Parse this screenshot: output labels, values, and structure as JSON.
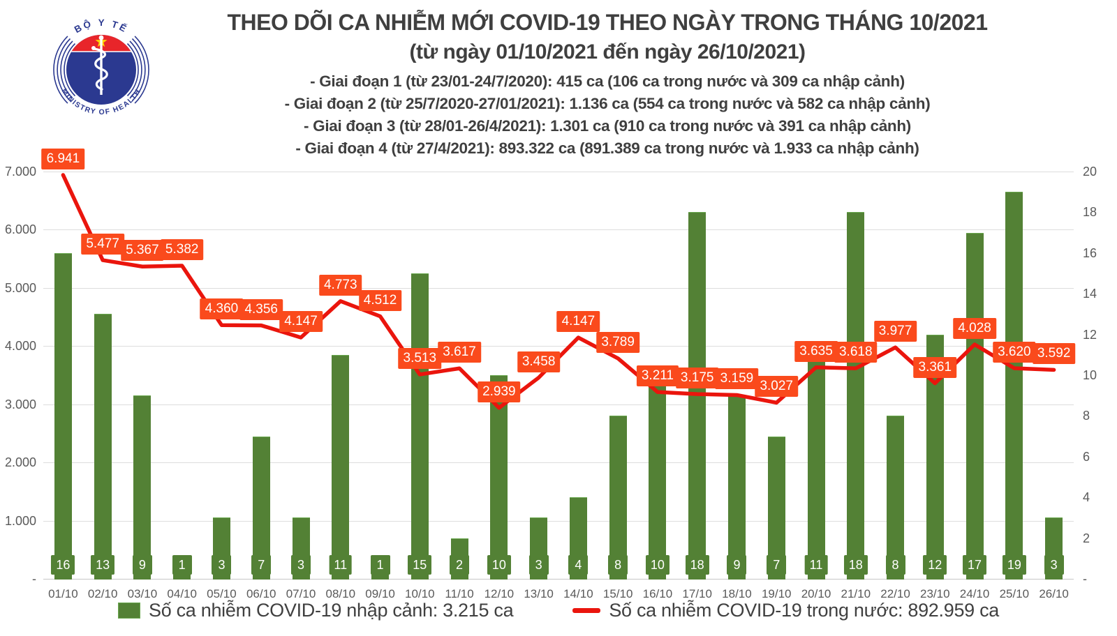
{
  "header": {
    "title": "THEO DÕI CA NHIỄM MỚI COVID-19 THEO NGÀY TRONG THÁNG 10/2021",
    "subtitle": "(từ ngày 01/10/2021 đến ngày 26/10/2021)",
    "phases": [
      "- Giai đoạn 1 (từ 23/01-24/7/2020): 415 ca (106 ca trong nước và 309 ca nhập cảnh)",
      "- Giai đoạn 2 (từ 25/7/2020-27/01/2021): 1.136 ca (554 ca trong nước và 582 ca nhập cảnh)",
      "- Giai đoạn 3 (từ 28/01-26/4/2021): 1.301 ca (910 ca trong nước và 391 ca nhập cảnh)",
      "- Giai đoạn 4 (từ 27/4/2021): 893.322 ca (891.389 ca trong nước và 1.933 ca nhập cảnh)"
    ],
    "logo": {
      "top_text": "BỘ Y TẾ",
      "bottom_text": "MINISTRY OF HEALTH"
    }
  },
  "chart_data": {
    "type": "combo-bar-line",
    "categories": [
      "01/10",
      "02/10",
      "03/10",
      "04/10",
      "05/10",
      "06/10",
      "07/10",
      "08/10",
      "09/10",
      "10/10",
      "11/10",
      "12/10",
      "13/10",
      "14/10",
      "15/10",
      "16/10",
      "17/10",
      "18/10",
      "19/10",
      "20/10",
      "21/10",
      "22/10",
      "23/10",
      "24/10",
      "25/10",
      "26/10"
    ],
    "series": [
      {
        "name": "Số ca nhiễm COVID-19 nhập cảnh",
        "type": "bar",
        "axis": "right",
        "values": [
          16,
          13,
          9,
          1,
          3,
          7,
          3,
          11,
          1,
          15,
          2,
          10,
          3,
          4,
          8,
          10,
          18,
          9,
          7,
          11,
          18,
          8,
          12,
          17,
          19,
          3
        ]
      },
      {
        "name": "Số ca nhiễm COVID-19 trong nước",
        "type": "line",
        "axis": "left",
        "values": [
          6941,
          5477,
          5367,
          5382,
          4360,
          4356,
          4147,
          4773,
          4512,
          3513,
          3617,
          2939,
          3458,
          4147,
          3789,
          3211,
          3175,
          3159,
          3027,
          3635,
          3618,
          3977,
          3361,
          4028,
          3620,
          3592
        ],
        "labels": [
          "6.941",
          "5.477",
          "5.367",
          "5.382",
          "4.360",
          "4.356",
          "4.147",
          "4.773",
          "4.512",
          "3.513",
          "3.617",
          "2.939",
          "3.458",
          "4.147",
          "3.789",
          "3.211",
          "3.175",
          "3.159",
          "3.027",
          "3.635",
          "3.618",
          "3.977",
          "3.361",
          "4.028",
          "3.620",
          "3.592"
        ]
      }
    ],
    "left_axis": {
      "min": 0,
      "max": 7000,
      "tick_values": [
        7000,
        6000,
        5000,
        4000,
        3000,
        2000,
        1000
      ],
      "tick_labels": [
        "7.000",
        "6.000",
        "5.000",
        "4.000",
        "3.000",
        "2.000",
        "1.000"
      ],
      "zero_label": "-"
    },
    "right_axis": {
      "min": 0,
      "max": 20,
      "tick_values": [
        20,
        18,
        16,
        14,
        12,
        10,
        8,
        6,
        4,
        2
      ],
      "tick_labels": [
        "20",
        "18",
        "16",
        "14",
        "12",
        "10",
        "8",
        "6",
        "4",
        "2"
      ],
      "zero_label": "-"
    },
    "grid": true,
    "legend_position": "bottom",
    "legend": [
      {
        "swatch": "bar",
        "label": "Số ca nhiễm COVID-19 nhập cảnh: 3.215 ca"
      },
      {
        "swatch": "line",
        "label": "Số ca nhiễm COVID-19 trong nước: 892.959 ca"
      }
    ],
    "colors": {
      "bar": "#538135",
      "bar_border": "#6aa84f",
      "line": "#ea150d",
      "line_label_bg": "#fa4a1c",
      "grid": "#dddddd",
      "axis_text": "#595959",
      "title_text": "#3f3f3f",
      "legend_text": "#404040",
      "logo_navy": "#2b3990",
      "logo_red": "#e8252a",
      "logo_star": "#ffd400"
    }
  }
}
